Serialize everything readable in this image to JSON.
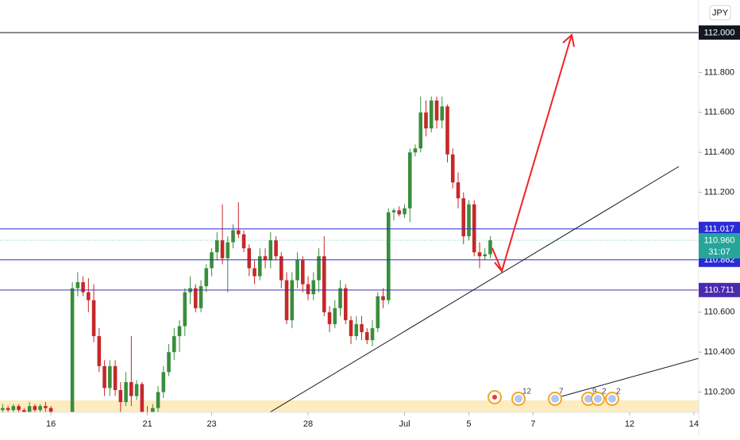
{
  "chart_data": {
    "type": "candlestick",
    "currency": "JPY",
    "up_color": "#388e3c",
    "down_color": "#c62828",
    "ylim": [
      110.099,
      112.163
    ],
    "xlim": [
      -0.5,
      129.9
    ],
    "yticks": [
      {
        "value": 111.8,
        "label": "111.800"
      },
      {
        "value": 111.6,
        "label": "111.600"
      },
      {
        "value": 111.4,
        "label": "111.400"
      },
      {
        "value": 111.2,
        "label": "111.200"
      },
      {
        "value": 110.6,
        "label": "110.600"
      },
      {
        "value": 110.4,
        "label": "110.400"
      },
      {
        "value": 110.2,
        "label": "110.200"
      }
    ],
    "xticks": [
      {
        "value": 9,
        "label": "16"
      },
      {
        "value": 27,
        "label": "21"
      },
      {
        "value": 39,
        "label": "23"
      },
      {
        "value": 57,
        "label": "28"
      },
      {
        "value": 75,
        "label": "Jul"
      },
      {
        "value": 87,
        "label": "5"
      },
      {
        "value": 99,
        "label": "7"
      },
      {
        "value": 117,
        "label": "12"
      },
      {
        "value": 129,
        "label": "14"
      }
    ],
    "price_lines": [
      {
        "value": 112.0,
        "label": "112.000",
        "color": "#131722"
      },
      {
        "value": 111.017,
        "label": "111.017",
        "color": "#2b2bd6"
      },
      {
        "value": 110.862,
        "label": "110.862",
        "color": "#2b2bd6"
      },
      {
        "value": 110.711,
        "label": "110.711",
        "color": "#4a2bb0"
      }
    ],
    "last_price": {
      "value": 110.96,
      "label": "110.960",
      "countdown": "31:07",
      "color": "#26a69a"
    },
    "events": [
      "12",
      "7",
      "9",
      "2",
      "2"
    ],
    "candles": [
      [
        110.11,
        110.14,
        110.09,
        110.12
      ],
      [
        110.12,
        110.13,
        110.09,
        110.11
      ],
      [
        110.11,
        110.14,
        110.1,
        110.13
      ],
      [
        110.13,
        110.14,
        110.1,
        110.11
      ],
      [
        110.11,
        110.12,
        110.08,
        110.1
      ],
      [
        110.1,
        110.15,
        110.09,
        110.13
      ],
      [
        110.13,
        110.14,
        110.1,
        110.11
      ],
      [
        110.11,
        110.14,
        110.1,
        110.13
      ],
      [
        110.13,
        110.15,
        110.1,
        110.12
      ],
      [
        110.12,
        110.13,
        110.02,
        110.04
      ],
      [
        110.04,
        110.06,
        109.98,
        110.0
      ],
      [
        110.0,
        110.05,
        109.97,
        110.03
      ],
      [
        110.03,
        110.08,
        110.0,
        110.05
      ],
      [
        110.05,
        110.75,
        110.04,
        110.72
      ],
      [
        110.72,
        110.8,
        110.68,
        110.75
      ],
      [
        110.75,
        110.78,
        110.68,
        110.7
      ],
      [
        110.7,
        110.77,
        110.6,
        110.66
      ],
      [
        110.66,
        110.74,
        110.45,
        110.48
      ],
      [
        110.48,
        110.52,
        110.3,
        110.33
      ],
      [
        110.33,
        110.36,
        110.18,
        110.22
      ],
      [
        110.22,
        110.36,
        110.18,
        110.33
      ],
      [
        110.33,
        110.36,
        110.18,
        110.21
      ],
      [
        110.21,
        110.25,
        110.1,
        110.15
      ],
      [
        110.15,
        110.3,
        110.13,
        110.25
      ],
      [
        110.25,
        110.48,
        110.13,
        110.18
      ],
      [
        110.18,
        110.26,
        110.16,
        110.24
      ],
      [
        110.24,
        110.25,
        110.07,
        110.1
      ],
      [
        110.1,
        110.13,
        110.03,
        110.05
      ],
      [
        110.05,
        110.14,
        110.04,
        110.12
      ],
      [
        110.12,
        110.23,
        110.1,
        110.2
      ],
      [
        110.2,
        110.33,
        110.17,
        110.3
      ],
      [
        110.3,
        110.44,
        110.28,
        110.4
      ],
      [
        110.4,
        110.52,
        110.36,
        110.48
      ],
      [
        110.48,
        110.56,
        110.4,
        110.53
      ],
      [
        110.53,
        110.72,
        110.48,
        110.7
      ],
      [
        110.7,
        110.78,
        110.64,
        110.72
      ],
      [
        110.72,
        110.74,
        110.6,
        110.62
      ],
      [
        110.62,
        110.76,
        110.6,
        110.73
      ],
      [
        110.73,
        110.84,
        110.7,
        110.82
      ],
      [
        110.82,
        110.92,
        110.78,
        110.9
      ],
      [
        110.9,
        111.0,
        110.86,
        110.96
      ],
      [
        110.96,
        111.14,
        110.84,
        110.87
      ],
      [
        110.87,
        110.98,
        110.7,
        110.95
      ],
      [
        110.95,
        111.04,
        110.92,
        111.01
      ],
      [
        111.01,
        111.15,
        110.97,
        110.99
      ],
      [
        110.99,
        111.01,
        110.9,
        110.92
      ],
      [
        110.92,
        110.94,
        110.78,
        110.82
      ],
      [
        110.82,
        110.86,
        110.74,
        110.78
      ],
      [
        110.78,
        110.92,
        110.76,
        110.88
      ],
      [
        110.88,
        110.92,
        110.82,
        110.86
      ],
      [
        110.86,
        111.0,
        110.82,
        110.96
      ],
      [
        110.96,
        110.98,
        110.86,
        110.88
      ],
      [
        110.88,
        110.9,
        110.72,
        110.76
      ],
      [
        110.76,
        110.8,
        110.54,
        110.56
      ],
      [
        110.56,
        110.8,
        110.52,
        110.76
      ],
      [
        110.76,
        110.9,
        110.72,
        110.86
      ],
      [
        110.86,
        110.88,
        110.7,
        110.74
      ],
      [
        110.74,
        110.78,
        110.66,
        110.69
      ],
      [
        110.69,
        110.8,
        110.66,
        110.76
      ],
      [
        110.76,
        110.92,
        110.7,
        110.88
      ],
      [
        110.88,
        110.98,
        110.58,
        110.6
      ],
      [
        110.6,
        110.63,
        110.5,
        110.54
      ],
      [
        110.54,
        110.66,
        110.52,
        110.62
      ],
      [
        110.62,
        110.76,
        110.58,
        110.72
      ],
      [
        110.72,
        110.74,
        110.54,
        110.56
      ],
      [
        110.56,
        110.58,
        110.44,
        110.48
      ],
      [
        110.48,
        110.58,
        110.46,
        110.54
      ],
      [
        110.54,
        110.58,
        110.46,
        110.5
      ],
      [
        110.5,
        110.52,
        110.44,
        110.46
      ],
      [
        110.46,
        110.56,
        110.43,
        110.52
      ],
      [
        110.52,
        110.7,
        110.5,
        110.68
      ],
      [
        110.68,
        110.72,
        110.62,
        110.66
      ],
      [
        110.66,
        111.12,
        110.64,
        111.1
      ],
      [
        111.1,
        111.12,
        111.06,
        111.11
      ],
      [
        111.11,
        111.13,
        111.08,
        111.09
      ],
      [
        111.09,
        111.14,
        111.07,
        111.12
      ],
      [
        111.12,
        111.42,
        111.05,
        111.4
      ],
      [
        111.4,
        111.44,
        111.38,
        111.42
      ],
      [
        111.42,
        111.68,
        111.4,
        111.6
      ],
      [
        111.6,
        111.66,
        111.48,
        111.52
      ],
      [
        111.52,
        111.68,
        111.5,
        111.66
      ],
      [
        111.66,
        111.68,
        111.52,
        111.56
      ],
      [
        111.56,
        111.68,
        111.52,
        111.63
      ],
      [
        111.63,
        111.64,
        111.35,
        111.39
      ],
      [
        111.39,
        111.42,
        111.22,
        111.25
      ],
      [
        111.25,
        111.3,
        111.12,
        111.17
      ],
      [
        111.17,
        111.2,
        110.94,
        110.98
      ],
      [
        110.98,
        111.16,
        110.96,
        111.14
      ],
      [
        111.14,
        111.16,
        110.88,
        110.9
      ],
      [
        110.9,
        110.95,
        110.82,
        110.88
      ],
      [
        110.88,
        110.92,
        110.86,
        110.89
      ],
      [
        110.89,
        110.98,
        110.87,
        110.96
      ]
    ]
  }
}
